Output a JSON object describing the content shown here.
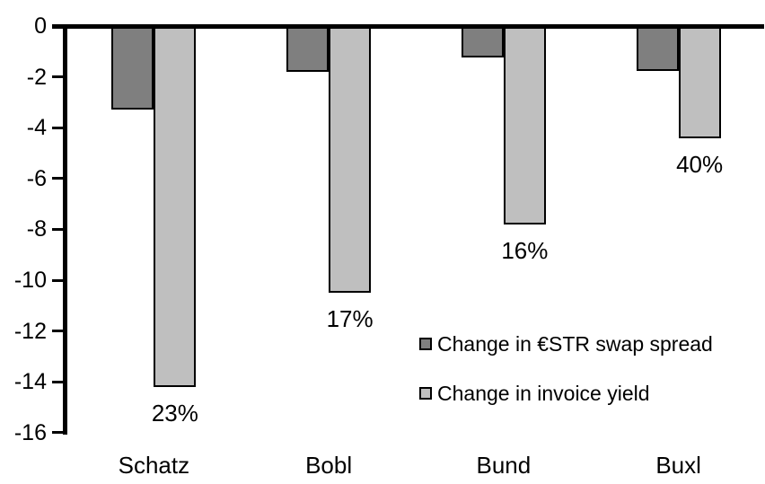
{
  "chart_data": {
    "type": "bar",
    "categories": [
      "Schatz",
      "Bobl",
      "Bund",
      "Buxl"
    ],
    "series": [
      {
        "name": "Change in €STR swap spread",
        "color": "#7f7f7f",
        "values": [
          -3.3,
          -1.8,
          -1.25,
          -1.75
        ]
      },
      {
        "name": "Change in invoice yield",
        "color": "#bfbfbf",
        "values": [
          -14.2,
          -10.5,
          -7.8,
          -4.4
        ]
      }
    ],
    "bar_labels": [
      "23%",
      "17%",
      "16%",
      "40%"
    ],
    "ylim": [
      -16,
      0
    ],
    "yticks": [
      0,
      -2,
      -4,
      -6,
      -8,
      -10,
      -12,
      -14,
      -16
    ],
    "grid": false,
    "legend_position": "inside-right",
    "colors": {
      "bar_border": "#000000",
      "axis": "#000000",
      "text": "#000000",
      "background": "#ffffff"
    }
  }
}
